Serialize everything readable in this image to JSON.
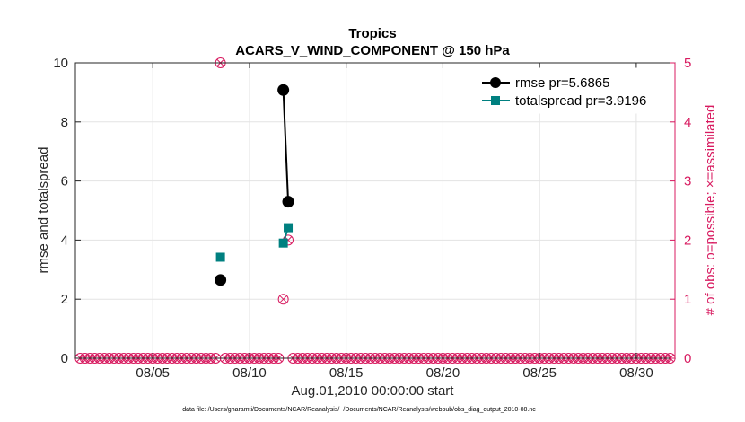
{
  "chart_data": {
    "type": "line",
    "title": "Tropics",
    "subtitle": "ACARS_V_WIND_COMPONENT @ 150 hPa",
    "xlabel": "Aug.01,2010 00:00:00 start",
    "ylabel": "rmse and totalspread",
    "ylabel_right": "# of obs: o=possible; ×=assimilated",
    "footnote": "data file: /Users/gharamti/Documents/NCAR/Reanalysis/~/Documents/NCAR/Reanalysis/webpub/obs_diag_output_2010-08.nc",
    "xlim": [
      1,
      32
    ],
    "ylim": [
      0,
      10
    ],
    "ylim_right": [
      0,
      5
    ],
    "x_ticks": [
      5,
      10,
      15,
      20,
      25,
      30
    ],
    "x_tick_labels": [
      "08/05",
      "08/10",
      "08/15",
      "08/20",
      "08/25",
      "08/30"
    ],
    "y_ticks": [
      0,
      2,
      4,
      6,
      8,
      10
    ],
    "y_tick_labels": [
      "0",
      "2",
      "4",
      "6",
      "8",
      "10"
    ],
    "y_ticks_right": [
      0,
      1,
      2,
      3,
      4,
      5
    ],
    "y_tick_labels_right": [
      "0",
      "1",
      "2",
      "3",
      "4",
      "5"
    ],
    "grid": true,
    "legend_position": "top-right",
    "colors": {
      "rmse": "#000000",
      "totalspread": "#008080",
      "obs": "#d81b60"
    },
    "series": [
      {
        "name": "rmse pr=5.6865",
        "axis": "left",
        "segments": [
          [
            {
              "x": 8.5,
              "y": 2.65
            }
          ],
          [
            {
              "x": 11.75,
              "y": 9.08
            },
            {
              "x": 12.0,
              "y": 5.3
            }
          ]
        ]
      },
      {
        "name": "totalspread pr=3.9196",
        "axis": "left",
        "segments": [
          [
            {
              "x": 8.5,
              "y": 3.42
            }
          ],
          [
            {
              "x": 11.75,
              "y": 3.9
            },
            {
              "x": 12.0,
              "y": 4.42
            }
          ]
        ]
      },
      {
        "name": "obs possible",
        "axis": "right",
        "marker": "circle",
        "x": [
          8.5,
          11.75,
          12.0
        ],
        "values": [
          5,
          1,
          2
        ]
      },
      {
        "name": "obs assimilated",
        "axis": "right",
        "marker": "x",
        "x": [
          8.5,
          11.75,
          12.0
        ],
        "values": [
          5,
          1,
          2
        ]
      }
    ],
    "zero_obs_x_start": 1.25,
    "zero_obs_x_end": 31.75,
    "zero_obs_x_step": 0.25
  }
}
